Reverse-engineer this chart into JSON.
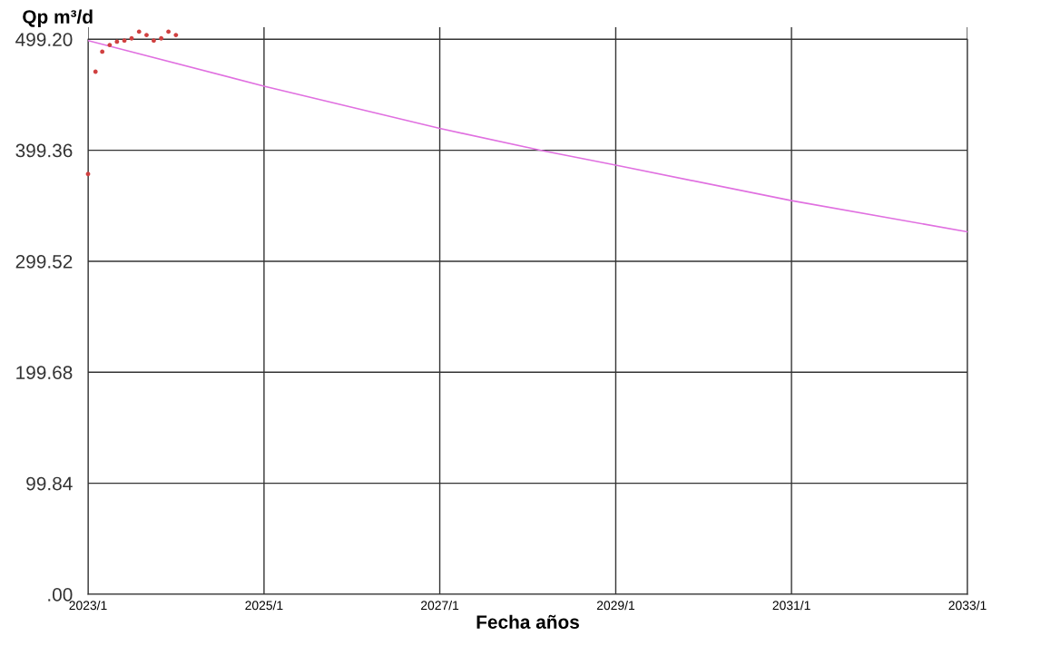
{
  "chart_data": {
    "type": "line",
    "xlabel": "Fecha años",
    "ylabel": "Qp m³/d",
    "grid": true,
    "legend": false,
    "xlim": [
      "2023-01",
      "2033-01"
    ],
    "xticks": [
      {
        "value": "2023-01",
        "label": "2023/1"
      },
      {
        "value": "2025-01",
        "label": "2025/1"
      },
      {
        "value": "2027-01",
        "label": "2027/1"
      },
      {
        "value": "2029-01",
        "label": "2029/1"
      },
      {
        "value": "2031-01",
        "label": "2031/1"
      },
      {
        "value": "2033-01",
        "label": "2033/1"
      }
    ],
    "ylim": [
      0,
      510
    ],
    "yticks": [
      {
        "value": 0,
        "label": ".00"
      },
      {
        "value": 99.84,
        "label": "99.84"
      },
      {
        "value": 199.68,
        "label": "199.68"
      },
      {
        "value": 299.52,
        "label": "299.52"
      },
      {
        "value": 399.36,
        "label": "399.36"
      },
      {
        "value": 499.2,
        "label": "499.20"
      }
    ],
    "series": [
      {
        "color": "#e070e0",
        "x": [
          "2023-01",
          "2025-01",
          "2027-01",
          "2028-03",
          "2029-01",
          "2031-01",
          "2033-01"
        ],
        "values": [
          498,
          457,
          419,
          399,
          386,
          354,
          326
        ]
      },
      {
        "type": "scatter",
        "color": "#d04040",
        "marker": "circle",
        "x": [
          "2023-01",
          "2023-02",
          "2023-03",
          "2023-04",
          "2023-05",
          "2023-06",
          "2023-07",
          "2023-08",
          "2023-09",
          "2023-10",
          "2023-11",
          "2023-12",
          "2024-01"
        ],
        "values": [
          378,
          470,
          488,
          494,
          497,
          498,
          500,
          506,
          503,
          498,
          500,
          506,
          503
        ]
      }
    ]
  }
}
